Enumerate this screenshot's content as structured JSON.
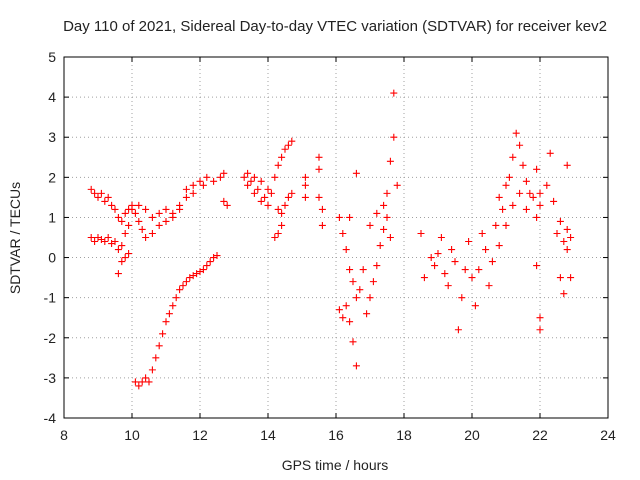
{
  "chart_data": {
    "type": "scatter",
    "title": "Day 110 of 2021, Sidereal Day-to-day VTEC variation (SDTVAR) for receiver kev2",
    "xlabel": "GPS time / hours",
    "ylabel": "SDTVAR / TECUs",
    "xlim": [
      8,
      24
    ],
    "ylim": [
      -4,
      5
    ],
    "xticks": [
      "8",
      "10",
      "12",
      "14",
      "16",
      "18",
      "20",
      "22",
      "24"
    ],
    "yticks": [
      "-4",
      "-3",
      "-2",
      "-1",
      "0",
      "1",
      "2",
      "3",
      "4",
      "5"
    ],
    "grid": true,
    "marker": "+",
    "color": "#ff0000",
    "series": [
      {
        "name": "SDTVAR",
        "points": [
          [
            8.8,
            1.7
          ],
          [
            8.9,
            1.6
          ],
          [
            9.0,
            1.5
          ],
          [
            9.1,
            1.6
          ],
          [
            9.2,
            1.4
          ],
          [
            9.3,
            1.5
          ],
          [
            9.4,
            1.3
          ],
          [
            9.5,
            1.2
          ],
          [
            8.8,
            0.5
          ],
          [
            8.9,
            0.4
          ],
          [
            9.0,
            0.5
          ],
          [
            9.1,
            0.45
          ],
          [
            9.2,
            0.4
          ],
          [
            9.3,
            0.5
          ],
          [
            9.4,
            0.35
          ],
          [
            9.5,
            0.4
          ],
          [
            9.6,
            0.2
          ],
          [
            9.7,
            0.3
          ],
          [
            9.8,
            0.6
          ],
          [
            9.9,
            0.8
          ],
          [
            9.6,
            -0.4
          ],
          [
            9.7,
            -0.1
          ],
          [
            9.8,
            0.0
          ],
          [
            9.9,
            0.1
          ],
          [
            9.6,
            1.0
          ],
          [
            9.7,
            0.9
          ],
          [
            9.8,
            1.1
          ],
          [
            9.9,
            1.2
          ],
          [
            10.0,
            1.3
          ],
          [
            10.1,
            1.1
          ],
          [
            10.2,
            0.9
          ],
          [
            10.3,
            0.7
          ],
          [
            10.0,
            1.2
          ],
          [
            10.2,
            1.3
          ],
          [
            10.4,
            1.2
          ],
          [
            10.6,
            1.0
          ],
          [
            10.8,
            1.1
          ],
          [
            11.0,
            1.2
          ],
          [
            11.2,
            1.0
          ],
          [
            11.4,
            1.2
          ],
          [
            10.4,
            0.5
          ],
          [
            10.6,
            0.6
          ],
          [
            10.8,
            0.8
          ],
          [
            11.0,
            0.9
          ],
          [
            11.2,
            1.1
          ],
          [
            11.4,
            1.3
          ],
          [
            11.6,
            1.5
          ],
          [
            11.8,
            1.6
          ],
          [
            11.6,
            1.7
          ],
          [
            11.8,
            1.8
          ],
          [
            12.0,
            1.9
          ],
          [
            12.2,
            2.0
          ],
          [
            12.4,
            1.9
          ],
          [
            12.6,
            2.0
          ],
          [
            12.7,
            2.1
          ],
          [
            12.1,
            1.8
          ],
          [
            10.1,
            -3.1
          ],
          [
            10.2,
            -3.2
          ],
          [
            10.3,
            -3.1
          ],
          [
            10.4,
            -3.0
          ],
          [
            10.5,
            -3.1
          ],
          [
            10.6,
            -2.8
          ],
          [
            10.7,
            -2.5
          ],
          [
            10.8,
            -2.2
          ],
          [
            10.9,
            -1.9
          ],
          [
            11.0,
            -1.6
          ],
          [
            11.1,
            -1.4
          ],
          [
            11.2,
            -1.2
          ],
          [
            11.3,
            -1.0
          ],
          [
            11.4,
            -0.8
          ],
          [
            11.5,
            -0.7
          ],
          [
            11.6,
            -0.6
          ],
          [
            11.7,
            -0.5
          ],
          [
            11.8,
            -0.45
          ],
          [
            11.9,
            -0.4
          ],
          [
            12.0,
            -0.35
          ],
          [
            12.1,
            -0.3
          ],
          [
            12.2,
            -0.2
          ],
          [
            12.3,
            -0.1
          ],
          [
            12.4,
            0.0
          ],
          [
            12.5,
            0.05
          ],
          [
            12.7,
            1.4
          ],
          [
            12.8,
            1.3
          ],
          [
            13.3,
            2.0
          ],
          [
            13.4,
            1.8
          ],
          [
            13.5,
            1.9
          ],
          [
            13.6,
            1.6
          ],
          [
            13.7,
            1.7
          ],
          [
            13.8,
            1.9
          ],
          [
            13.9,
            1.5
          ],
          [
            14.0,
            1.7
          ],
          [
            13.4,
            2.1
          ],
          [
            13.6,
            2.0
          ],
          [
            13.8,
            1.4
          ],
          [
            14.0,
            1.3
          ],
          [
            14.1,
            1.6
          ],
          [
            14.2,
            2.0
          ],
          [
            14.3,
            2.3
          ],
          [
            14.4,
            2.5
          ],
          [
            14.5,
            2.7
          ],
          [
            14.6,
            2.8
          ],
          [
            14.7,
            2.9
          ],
          [
            14.3,
            1.2
          ],
          [
            14.4,
            1.1
          ],
          [
            14.5,
            1.3
          ],
          [
            14.6,
            1.5
          ],
          [
            14.7,
            1.6
          ],
          [
            14.2,
            0.5
          ],
          [
            14.3,
            0.6
          ],
          [
            14.4,
            0.8
          ],
          [
            15.1,
            2.0
          ],
          [
            15.1,
            1.8
          ],
          [
            15.1,
            1.5
          ],
          [
            15.5,
            2.5
          ],
          [
            15.5,
            2.2
          ],
          [
            15.5,
            1.5
          ],
          [
            15.6,
            1.2
          ],
          [
            15.6,
            0.8
          ],
          [
            16.1,
            1.0
          ],
          [
            16.2,
            0.6
          ],
          [
            16.3,
            0.2
          ],
          [
            16.4,
            -0.3
          ],
          [
            16.5,
            -0.6
          ],
          [
            16.6,
            -1.0
          ],
          [
            16.7,
            -0.8
          ],
          [
            16.8,
            -0.3
          ],
          [
            16.1,
            -1.3
          ],
          [
            16.2,
            -1.5
          ],
          [
            16.3,
            -1.2
          ],
          [
            16.4,
            -1.6
          ],
          [
            16.5,
            -2.1
          ],
          [
            16.6,
            -2.7
          ],
          [
            16.4,
            1.0
          ],
          [
            16.6,
            2.1
          ],
          [
            16.9,
            -1.4
          ],
          [
            17.0,
            -1.0
          ],
          [
            17.1,
            -0.6
          ],
          [
            17.2,
            -0.2
          ],
          [
            17.3,
            0.3
          ],
          [
            17.4,
            0.7
          ],
          [
            17.5,
            1.0
          ],
          [
            17.6,
            0.5
          ],
          [
            17.0,
            0.8
          ],
          [
            17.2,
            1.1
          ],
          [
            17.4,
            1.3
          ],
          [
            17.5,
            1.6
          ],
          [
            17.7,
            4.1
          ],
          [
            17.7,
            3.0
          ],
          [
            17.6,
            2.4
          ],
          [
            17.8,
            1.8
          ],
          [
            18.5,
            0.6
          ],
          [
            18.6,
            -0.5
          ],
          [
            18.8,
            0.0
          ],
          [
            18.9,
            -0.2
          ],
          [
            19.0,
            0.1
          ],
          [
            19.1,
            0.5
          ],
          [
            19.2,
            -0.4
          ],
          [
            19.3,
            -0.7
          ],
          [
            19.4,
            0.2
          ],
          [
            19.5,
            -0.1
          ],
          [
            19.6,
            -1.8
          ],
          [
            19.7,
            -1.0
          ],
          [
            19.8,
            -0.3
          ],
          [
            19.9,
            0.4
          ],
          [
            20.0,
            -0.5
          ],
          [
            20.1,
            -1.2
          ],
          [
            20.2,
            -0.3
          ],
          [
            20.3,
            0.6
          ],
          [
            20.4,
            0.2
          ],
          [
            20.5,
            -0.7
          ],
          [
            20.6,
            -0.1
          ],
          [
            20.7,
            0.8
          ],
          [
            20.8,
            1.5
          ],
          [
            20.9,
            1.2
          ],
          [
            21.0,
            1.8
          ],
          [
            21.1,
            2.0
          ],
          [
            21.2,
            2.5
          ],
          [
            21.3,
            3.1
          ],
          [
            21.4,
            2.8
          ],
          [
            21.5,
            2.3
          ],
          [
            21.6,
            1.9
          ],
          [
            21.7,
            1.6
          ],
          [
            20.8,
            0.3
          ],
          [
            21.0,
            0.8
          ],
          [
            21.2,
            1.3
          ],
          [
            21.4,
            1.6
          ],
          [
            21.6,
            1.2
          ],
          [
            21.8,
            1.5
          ],
          [
            21.9,
            1.0
          ],
          [
            22.0,
            1.3
          ],
          [
            21.9,
            2.2
          ],
          [
            22.0,
            1.6
          ],
          [
            21.9,
            -0.2
          ],
          [
            22.0,
            -1.5
          ],
          [
            22.0,
            -1.8
          ],
          [
            22.2,
            1.8
          ],
          [
            22.3,
            2.6
          ],
          [
            22.4,
            1.4
          ],
          [
            22.5,
            0.6
          ],
          [
            22.6,
            0.9
          ],
          [
            22.7,
            0.4
          ],
          [
            22.8,
            0.2
          ],
          [
            22.6,
            -0.5
          ],
          [
            22.7,
            -0.9
          ],
          [
            22.8,
            2.3
          ],
          [
            22.9,
            -0.5
          ],
          [
            22.9,
            0.5
          ],
          [
            22.8,
            0.7
          ]
        ]
      }
    ]
  }
}
